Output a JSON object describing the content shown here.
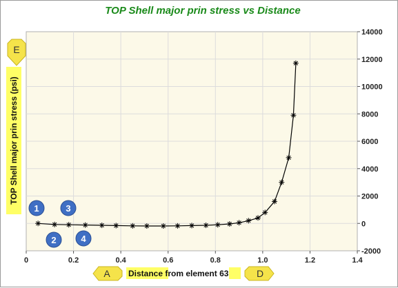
{
  "chart_data": {
    "type": "line",
    "title": "TOP Shell major prin stress  vs Distance",
    "xlabel": {
      "prefix": "Distance",
      "middle": " from element ",
      "element_id": "63"
    },
    "ylabel": "TOP Shell major prin stress (psi)",
    "xlim": [
      0,
      1.4
    ],
    "ylim": [
      -2000,
      14000
    ],
    "x_ticks": [
      "0",
      "0.2",
      "0.4",
      "0.6",
      "0.8",
      "1.0",
      "1.2",
      "1.4"
    ],
    "y_ticks": [
      "-2000",
      "0",
      "2000",
      "4000",
      "6000",
      "8000",
      "10000",
      "12000",
      "14000"
    ],
    "grid": true,
    "marker": "asterisk",
    "series": [
      {
        "x": [
          0.05,
          0.12,
          0.18,
          0.25,
          0.32,
          0.38,
          0.45,
          0.51,
          0.58,
          0.64,
          0.7,
          0.76,
          0.81,
          0.86,
          0.9,
          0.94,
          0.98,
          1.01,
          1.05,
          1.08,
          1.11,
          1.13,
          1.14
        ],
        "y": [
          0,
          -80,
          -100,
          -120,
          -140,
          -160,
          -180,
          -190,
          -190,
          -180,
          -160,
          -140,
          -100,
          -40,
          50,
          200,
          400,
          800,
          1600,
          3000,
          4800,
          7900,
          11700
        ]
      }
    ],
    "colors": {
      "line": "#000000",
      "plot_bg": "#fcf9e8",
      "grid": "#dcdcdc",
      "title": "#1a8a1a",
      "callout": "#f5e34a",
      "badge": "#3f6fc4",
      "highlight": "#ffff66"
    },
    "callouts": [
      "A",
      "D",
      "E"
    ],
    "badges": [
      "1",
      "2",
      "3",
      "4"
    ]
  }
}
